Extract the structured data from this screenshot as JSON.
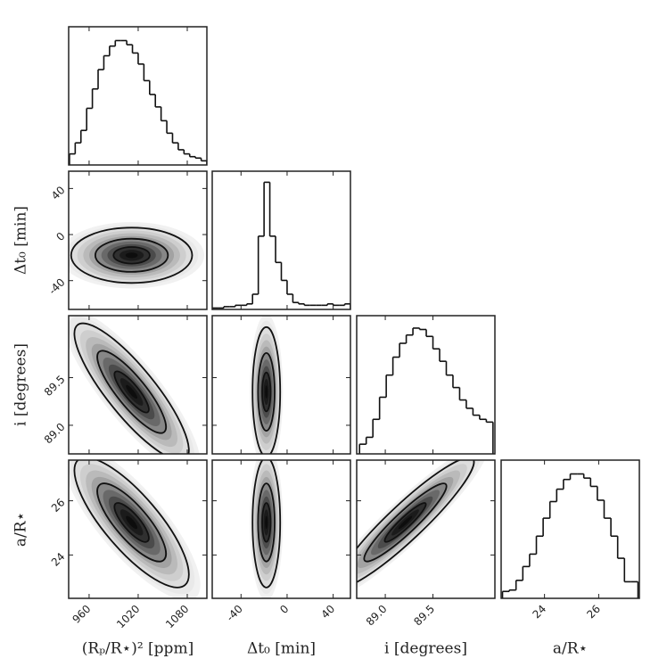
{
  "chart_data": {
    "type": "corner",
    "levels": [
      0.6,
      1.2,
      2
    ],
    "line_color": "#111111",
    "parameters": [
      {
        "label": "(Rₚ/R⋆)² [ppm]",
        "lim": [
          935,
          1104
        ],
        "ticks": [
          960,
          1020,
          1080
        ]
      },
      {
        "label": "Δt₀ [min]",
        "lim": [
          -65,
          55
        ],
        "ticks": [
          -40,
          0,
          40
        ]
      },
      {
        "label": "i [degrees]",
        "lim": [
          88.7,
          90.15
        ],
        "ticks": [
          {
            "value": 89,
            "label": "89.0"
          },
          89.5
        ]
      },
      {
        "label": "a/R⋆",
        "lim": [
          22.4,
          27.5
        ],
        "ticks": [
          24,
          26
        ]
      }
    ],
    "histograms": [
      {
        "ylim": [
          0,
          100
        ],
        "bins": [
          936,
          943,
          950,
          957,
          964,
          971,
          978,
          985,
          992,
          999,
          1006,
          1013,
          1020,
          1027,
          1034,
          1041,
          1048,
          1055,
          1062,
          1069,
          1076,
          1083,
          1090,
          1097,
          1104
        ],
        "counts": [
          8,
          16,
          25,
          41,
          55,
          69,
          79,
          86,
          90,
          90,
          87,
          81,
          73,
          61,
          51,
          42,
          32,
          23,
          16,
          11,
          8,
          6,
          5,
          3
        ]
      },
      {
        "ylim": [
          0,
          100
        ],
        "bins": [
          -65,
          -60,
          -55,
          -50,
          -45,
          -40,
          -35,
          -30,
          -25,
          -20,
          -15,
          -10,
          -5,
          0,
          5,
          10,
          15,
          20,
          25,
          30,
          35,
          40,
          45,
          50,
          55
        ],
        "counts": [
          1,
          1,
          2,
          2,
          3,
          3,
          4,
          11,
          53,
          92,
          53,
          34,
          21,
          11,
          5,
          4,
          3,
          3,
          3,
          3,
          4,
          3,
          3,
          4
        ]
      },
      {
        "ylim": [
          0,
          100
        ],
        "bins": [
          88.73,
          88.8,
          88.87,
          88.94,
          89.01,
          89.08,
          89.15,
          89.22,
          89.29,
          89.36,
          89.43,
          89.5,
          89.57,
          89.64,
          89.71,
          89.78,
          89.85,
          89.92,
          89.99,
          90.06,
          90.13
        ],
        "counts": [
          7,
          12,
          25,
          41,
          57,
          70,
          80,
          86,
          91,
          90,
          85,
          76,
          67,
          57,
          48,
          39,
          33,
          28,
          25,
          23
        ]
      },
      {
        "ylim": [
          0,
          100
        ],
        "bins": [
          22.45,
          22.7,
          22.95,
          23.2,
          23.45,
          23.7,
          23.95,
          24.2,
          24.45,
          24.7,
          24.95,
          25.2,
          25.45,
          25.7,
          25.95,
          26.2,
          26.45,
          26.7,
          26.95,
          27.2,
          27.45
        ],
        "counts": [
          5,
          6,
          13,
          23,
          32,
          45,
          58,
          70,
          79,
          86,
          90,
          90,
          87,
          81,
          71,
          58,
          45,
          29,
          12,
          12
        ]
      }
    ],
    "contours": [
      {
        "x": 0,
        "y": 1,
        "center": [
          1012,
          -18
        ],
        "sigma": [
          37,
          12
        ],
        "correlation": 0
      },
      {
        "x": 0,
        "y": 2,
        "center": [
          1012,
          89.35
        ],
        "sigma": [
          35,
          0.36
        ],
        "correlation": -0.85
      },
      {
        "x": 0,
        "y": 3,
        "center": [
          1012,
          25.2
        ],
        "sigma": [
          35,
          1.2
        ],
        "correlation": -0.8
      },
      {
        "x": 1,
        "y": 2,
        "center": [
          -18,
          89.35
        ],
        "sigma": [
          6,
          0.34
        ],
        "correlation": 0
      },
      {
        "x": 1,
        "y": 3,
        "center": [
          -18,
          25.2
        ],
        "sigma": [
          6,
          1.2
        ],
        "correlation": 0
      },
      {
        "x": 2,
        "y": 3,
        "center": [
          89.21,
          25.2
        ],
        "sigma": [
          0.36,
          1.2
        ],
        "correlation": 0.93
      }
    ]
  }
}
